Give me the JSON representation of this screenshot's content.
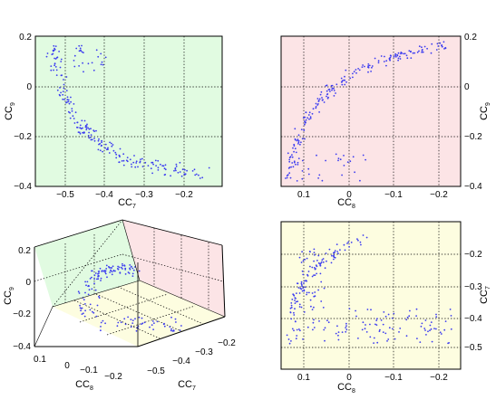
{
  "colors": {
    "green_panel": "#e1fbe1",
    "pink_panel": "#fce4e6",
    "yellow_panel": "#fdfde0",
    "points": "#3c3cf0"
  },
  "chart_data": [
    {
      "type": "scatter",
      "panel": "top-left",
      "xlabel": "CC",
      "xlabel_sub": "7",
      "ylabel": "CC",
      "ylabel_sub": "9",
      "xlim": [
        -0.55,
        -0.12
      ],
      "ylim": [
        -0.4,
        0.2
      ],
      "xticks": [
        -0.5,
        -0.4,
        -0.3,
        -0.2
      ],
      "xtick_labels": [
        "−0.5",
        "−0.4",
        "−0.3",
        "−0.2"
      ],
      "yticks": [
        -0.4,
        -0.2,
        0,
        0.2
      ],
      "ytick_labels": [
        "−0.4",
        "−0.2",
        "0",
        "0.2"
      ],
      "grid": true,
      "ytick_side": "left",
      "background": "green_panel",
      "description": "arc of points from upper left (CC7 ≈ −0.5, CC9 ≈ 0.15) down to lower right (CC7 ≈ −0.18, CC9 ≈ −0.35)"
    },
    {
      "type": "scatter",
      "panel": "top-right",
      "xlabel": "CC",
      "xlabel_sub": "8",
      "ylabel": "CC",
      "ylabel_sub": "9",
      "xlim": [
        0.15,
        -0.25
      ],
      "ylim": [
        -0.4,
        0.2
      ],
      "x_reversed": true,
      "xticks": [
        0.1,
        0,
        -0.1,
        -0.2
      ],
      "xtick_labels": [
        "0.1",
        "0",
        "−0.1",
        "−0.2"
      ],
      "yticks": [
        -0.4,
        -0.2,
        0,
        0.2
      ],
      "ytick_labels": [
        "−0.4",
        "−0.2",
        "0",
        "0.2"
      ],
      "grid": true,
      "ytick_side": "right",
      "background": "pink_panel",
      "description": "curve rising from lower left (CC8 ≈ 0.13, CC9 ≈ −0.35) to upper right (CC8 ≈ −0.2, CC9 ≈ 0.15)"
    },
    {
      "type": "scatter3d",
      "panel": "bottom-left",
      "xlabel": "CC",
      "xlabel_sub": "8",
      "ylabel": "CC",
      "ylabel_sub": "7",
      "zlabel": "CC",
      "zlabel_sub": "9",
      "zticks": [
        -0.4,
        -0.2,
        0,
        0.2
      ],
      "ztick_labels": [
        "−0.4",
        "−0.2",
        "0",
        "0.2"
      ],
      "xticks": [
        0.1,
        0,
        -0.1,
        -0.2
      ],
      "xtick_labels": [
        "0.1",
        "0",
        "−0.1",
        "−0.2"
      ],
      "yticks": [
        -0.5,
        -0.4,
        -0.3,
        -0.2
      ],
      "ytick_labels": [
        "−0.5",
        "−0.4",
        "−0.3",
        "−0.2"
      ],
      "grid": true,
      "walls": [
        "green_panel",
        "pink_panel",
        "yellow_panel"
      ]
    },
    {
      "type": "scatter",
      "panel": "bottom-right",
      "xlabel": "CC",
      "xlabel_sub": "8",
      "ylabel": "CC",
      "ylabel_sub": "7",
      "xlim": [
        0.15,
        -0.25
      ],
      "ylim": [
        -0.55,
        -0.15
      ],
      "x_reversed": true,
      "xticks": [
        0.1,
        0,
        -0.1,
        -0.2
      ],
      "xtick_labels": [
        "0.1",
        "0",
        "−0.1",
        "−0.2"
      ],
      "yticks": [
        -0.5,
        -0.4,
        -0.3,
        -0.2
      ],
      "ytick_labels": [
        "−0.5",
        "−0.4",
        "−0.3",
        "−0.2"
      ],
      "y_reversed": true,
      "grid": true,
      "ytick_side": "right",
      "background": "yellow_panel",
      "description": "cloud of points with a left-side band (CC8 ≈ 0.1) spanning CC7 −0.2 to −0.45, and a horizontal band near CC7 ≈ −0.4 extending to CC8 ≈ −0.15"
    }
  ]
}
